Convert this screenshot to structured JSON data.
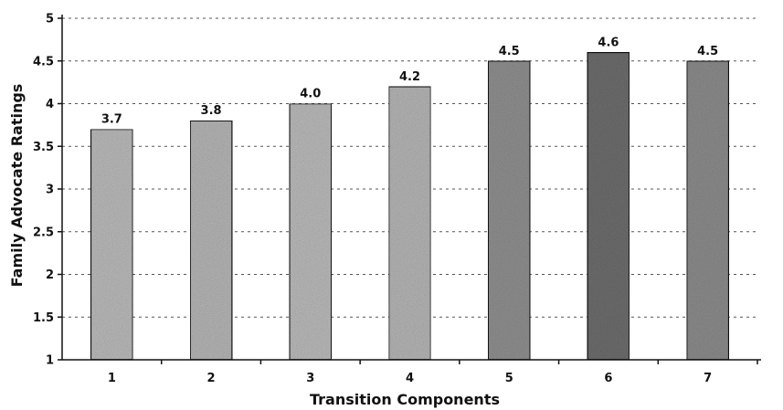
{
  "chart_data": {
    "type": "bar",
    "categories": [
      "1",
      "2",
      "3",
      "4",
      "5",
      "6",
      "7"
    ],
    "values": [
      3.7,
      3.8,
      4.0,
      4.2,
      4.5,
      4.6,
      4.5
    ],
    "data_labels": [
      "3.7",
      "3.8",
      "4.0",
      "4.2",
      "4.5",
      "4.6",
      "4.5"
    ],
    "title": "",
    "xlabel": "Transition Components",
    "ylabel": "Family Advocate Ratings",
    "ylim": [
      1,
      5
    ],
    "yticks": [
      1,
      1.5,
      2,
      2.5,
      3,
      3.5,
      4,
      4.5,
      5
    ],
    "ytick_labels": [
      "1",
      "1.5",
      "2",
      "2.5",
      "3",
      "3.5",
      "4",
      "4.5",
      "5"
    ],
    "grid": true,
    "legend": "none",
    "bar_colors": [
      "#b8b8b8",
      "#b3b3b3",
      "#b8b8b8",
      "#b3b3b3",
      "#8e8e8e",
      "#6c6c6c",
      "#8a8a8a"
    ]
  }
}
